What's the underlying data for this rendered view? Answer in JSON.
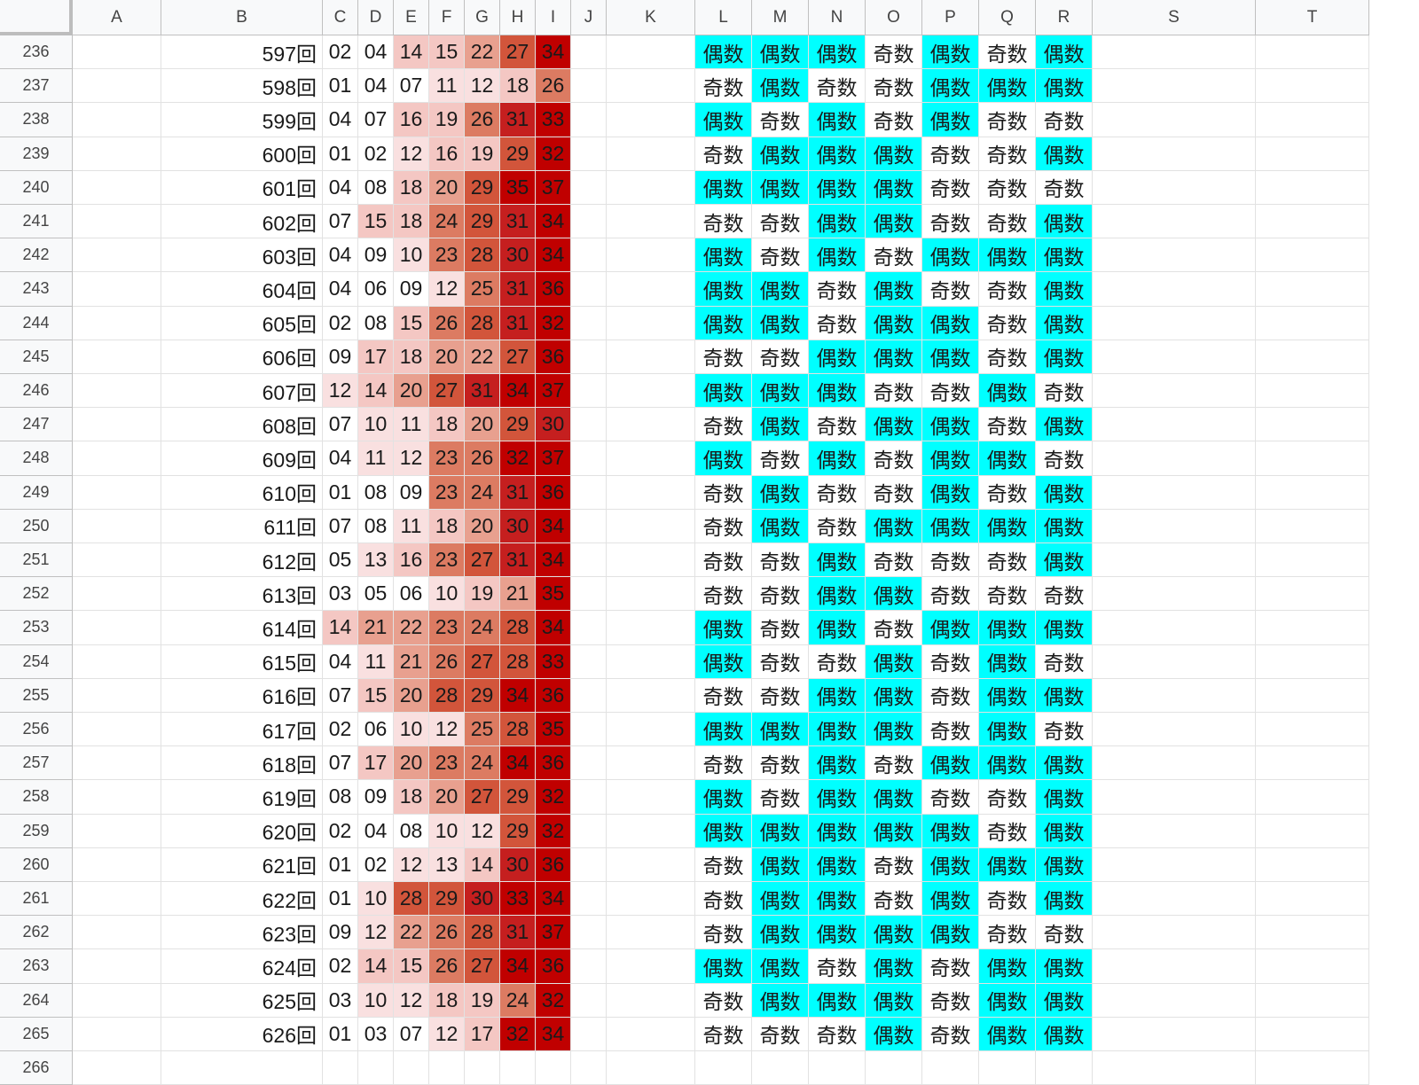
{
  "columns": [
    "A",
    "B",
    "C",
    "D",
    "E",
    "F",
    "G",
    "H",
    "I",
    "J",
    "K",
    "L",
    "M",
    "N",
    "O",
    "P",
    "Q",
    "R",
    "S",
    "T"
  ],
  "labels": {
    "odd": "奇数",
    "even": "偶数"
  },
  "colors": {
    "even_fill": "#00ffff",
    "odd_fill": "#ffffff",
    "heat_scale": [
      "#ffffff",
      "#f9e0e0",
      "#f4c7c3",
      "#e8a08f",
      "#dc7b62",
      "#d2553b",
      "#c51f1f",
      "#c00000"
    ]
  },
  "rows": [
    {
      "row": "236",
      "round": "597回",
      "nums": [
        "02",
        "04",
        "14",
        "15",
        "22",
        "27",
        "34"
      ],
      "parity": [
        "偶数",
        "偶数",
        "偶数",
        "奇数",
        "偶数",
        "奇数",
        "偶数"
      ]
    },
    {
      "row": "237",
      "round": "598回",
      "nums": [
        "01",
        "04",
        "07",
        "11",
        "12",
        "18",
        "26"
      ],
      "parity": [
        "奇数",
        "偶数",
        "奇数",
        "奇数",
        "偶数",
        "偶数",
        "偶数"
      ]
    },
    {
      "row": "238",
      "round": "599回",
      "nums": [
        "04",
        "07",
        "16",
        "19",
        "26",
        "31",
        "33"
      ],
      "parity": [
        "偶数",
        "奇数",
        "偶数",
        "奇数",
        "偶数",
        "奇数",
        "奇数"
      ]
    },
    {
      "row": "239",
      "round": "600回",
      "nums": [
        "01",
        "02",
        "12",
        "16",
        "19",
        "29",
        "32"
      ],
      "parity": [
        "奇数",
        "偶数",
        "偶数",
        "偶数",
        "奇数",
        "奇数",
        "偶数"
      ]
    },
    {
      "row": "240",
      "round": "601回",
      "nums": [
        "04",
        "08",
        "18",
        "20",
        "29",
        "35",
        "37"
      ],
      "parity": [
        "偶数",
        "偶数",
        "偶数",
        "偶数",
        "奇数",
        "奇数",
        "奇数"
      ]
    },
    {
      "row": "241",
      "round": "602回",
      "nums": [
        "07",
        "15",
        "18",
        "24",
        "29",
        "31",
        "34"
      ],
      "parity": [
        "奇数",
        "奇数",
        "偶数",
        "偶数",
        "奇数",
        "奇数",
        "偶数"
      ]
    },
    {
      "row": "242",
      "round": "603回",
      "nums": [
        "04",
        "09",
        "10",
        "23",
        "28",
        "30",
        "34"
      ],
      "parity": [
        "偶数",
        "奇数",
        "偶数",
        "奇数",
        "偶数",
        "偶数",
        "偶数"
      ]
    },
    {
      "row": "243",
      "round": "604回",
      "nums": [
        "04",
        "06",
        "09",
        "12",
        "25",
        "31",
        "36"
      ],
      "parity": [
        "偶数",
        "偶数",
        "奇数",
        "偶数",
        "奇数",
        "奇数",
        "偶数"
      ]
    },
    {
      "row": "244",
      "round": "605回",
      "nums": [
        "02",
        "08",
        "15",
        "26",
        "28",
        "31",
        "32"
      ],
      "parity": [
        "偶数",
        "偶数",
        "奇数",
        "偶数",
        "偶数",
        "奇数",
        "偶数"
      ]
    },
    {
      "row": "245",
      "round": "606回",
      "nums": [
        "09",
        "17",
        "18",
        "20",
        "22",
        "27",
        "36"
      ],
      "parity": [
        "奇数",
        "奇数",
        "偶数",
        "偶数",
        "偶数",
        "奇数",
        "偶数"
      ]
    },
    {
      "row": "246",
      "round": "607回",
      "nums": [
        "12",
        "14",
        "20",
        "27",
        "31",
        "34",
        "37"
      ],
      "parity": [
        "偶数",
        "偶数",
        "偶数",
        "奇数",
        "奇数",
        "偶数",
        "奇数"
      ]
    },
    {
      "row": "247",
      "round": "608回",
      "nums": [
        "07",
        "10",
        "11",
        "18",
        "20",
        "29",
        "30"
      ],
      "parity": [
        "奇数",
        "偶数",
        "奇数",
        "偶数",
        "偶数",
        "奇数",
        "偶数"
      ]
    },
    {
      "row": "248",
      "round": "609回",
      "nums": [
        "04",
        "11",
        "12",
        "23",
        "26",
        "32",
        "37"
      ],
      "parity": [
        "偶数",
        "奇数",
        "偶数",
        "奇数",
        "偶数",
        "偶数",
        "奇数"
      ]
    },
    {
      "row": "249",
      "round": "610回",
      "nums": [
        "01",
        "08",
        "09",
        "23",
        "24",
        "31",
        "36"
      ],
      "parity": [
        "奇数",
        "偶数",
        "奇数",
        "奇数",
        "偶数",
        "奇数",
        "偶数"
      ]
    },
    {
      "row": "250",
      "round": "611回",
      "nums": [
        "07",
        "08",
        "11",
        "18",
        "20",
        "30",
        "34"
      ],
      "parity": [
        "奇数",
        "偶数",
        "奇数",
        "偶数",
        "偶数",
        "偶数",
        "偶数"
      ]
    },
    {
      "row": "251",
      "round": "612回",
      "nums": [
        "05",
        "13",
        "16",
        "23",
        "27",
        "31",
        "34"
      ],
      "parity": [
        "奇数",
        "奇数",
        "偶数",
        "奇数",
        "奇数",
        "奇数",
        "偶数"
      ]
    },
    {
      "row": "252",
      "round": "613回",
      "nums": [
        "03",
        "05",
        "06",
        "10",
        "19",
        "21",
        "35"
      ],
      "parity": [
        "奇数",
        "奇数",
        "偶数",
        "偶数",
        "奇数",
        "奇数",
        "奇数"
      ]
    },
    {
      "row": "253",
      "round": "614回",
      "nums": [
        "14",
        "21",
        "22",
        "23",
        "24",
        "28",
        "34"
      ],
      "parity": [
        "偶数",
        "奇数",
        "偶数",
        "奇数",
        "偶数",
        "偶数",
        "偶数"
      ]
    },
    {
      "row": "254",
      "round": "615回",
      "nums": [
        "04",
        "11",
        "21",
        "26",
        "27",
        "28",
        "33"
      ],
      "parity": [
        "偶数",
        "奇数",
        "奇数",
        "偶数",
        "奇数",
        "偶数",
        "奇数"
      ]
    },
    {
      "row": "255",
      "round": "616回",
      "nums": [
        "07",
        "15",
        "20",
        "28",
        "29",
        "34",
        "36"
      ],
      "parity": [
        "奇数",
        "奇数",
        "偶数",
        "偶数",
        "奇数",
        "偶数",
        "偶数"
      ]
    },
    {
      "row": "256",
      "round": "617回",
      "nums": [
        "02",
        "06",
        "10",
        "12",
        "25",
        "28",
        "35"
      ],
      "parity": [
        "偶数",
        "偶数",
        "偶数",
        "偶数",
        "奇数",
        "偶数",
        "奇数"
      ]
    },
    {
      "row": "257",
      "round": "618回",
      "nums": [
        "07",
        "17",
        "20",
        "23",
        "24",
        "34",
        "36"
      ],
      "parity": [
        "奇数",
        "奇数",
        "偶数",
        "奇数",
        "偶数",
        "偶数",
        "偶数"
      ]
    },
    {
      "row": "258",
      "round": "619回",
      "nums": [
        "08",
        "09",
        "18",
        "20",
        "27",
        "29",
        "32"
      ],
      "parity": [
        "偶数",
        "奇数",
        "偶数",
        "偶数",
        "奇数",
        "奇数",
        "偶数"
      ]
    },
    {
      "row": "259",
      "round": "620回",
      "nums": [
        "02",
        "04",
        "08",
        "10",
        "12",
        "29",
        "32"
      ],
      "parity": [
        "偶数",
        "偶数",
        "偶数",
        "偶数",
        "偶数",
        "奇数",
        "偶数"
      ]
    },
    {
      "row": "260",
      "round": "621回",
      "nums": [
        "01",
        "02",
        "12",
        "13",
        "14",
        "30",
        "36"
      ],
      "parity": [
        "奇数",
        "偶数",
        "偶数",
        "奇数",
        "偶数",
        "偶数",
        "偶数"
      ]
    },
    {
      "row": "261",
      "round": "622回",
      "nums": [
        "01",
        "10",
        "28",
        "29",
        "30",
        "33",
        "34"
      ],
      "parity": [
        "奇数",
        "偶数",
        "偶数",
        "奇数",
        "偶数",
        "奇数",
        "偶数"
      ]
    },
    {
      "row": "262",
      "round": "623回",
      "nums": [
        "09",
        "12",
        "22",
        "26",
        "28",
        "31",
        "37"
      ],
      "parity": [
        "奇数",
        "偶数",
        "偶数",
        "偶数",
        "偶数",
        "奇数",
        "奇数"
      ]
    },
    {
      "row": "263",
      "round": "624回",
      "nums": [
        "02",
        "14",
        "15",
        "26",
        "27",
        "34",
        "36"
      ],
      "parity": [
        "偶数",
        "偶数",
        "奇数",
        "偶数",
        "奇数",
        "偶数",
        "偶数"
      ]
    },
    {
      "row": "264",
      "round": "625回",
      "nums": [
        "03",
        "10",
        "12",
        "18",
        "19",
        "24",
        "32"
      ],
      "parity": [
        "奇数",
        "偶数",
        "偶数",
        "偶数",
        "奇数",
        "偶数",
        "偶数"
      ]
    },
    {
      "row": "265",
      "round": "626回",
      "nums": [
        "01",
        "03",
        "07",
        "12",
        "17",
        "32",
        "34"
      ],
      "parity": [
        "奇数",
        "奇数",
        "奇数",
        "偶数",
        "奇数",
        "偶数",
        "偶数"
      ]
    }
  ],
  "trailing_row": "266"
}
